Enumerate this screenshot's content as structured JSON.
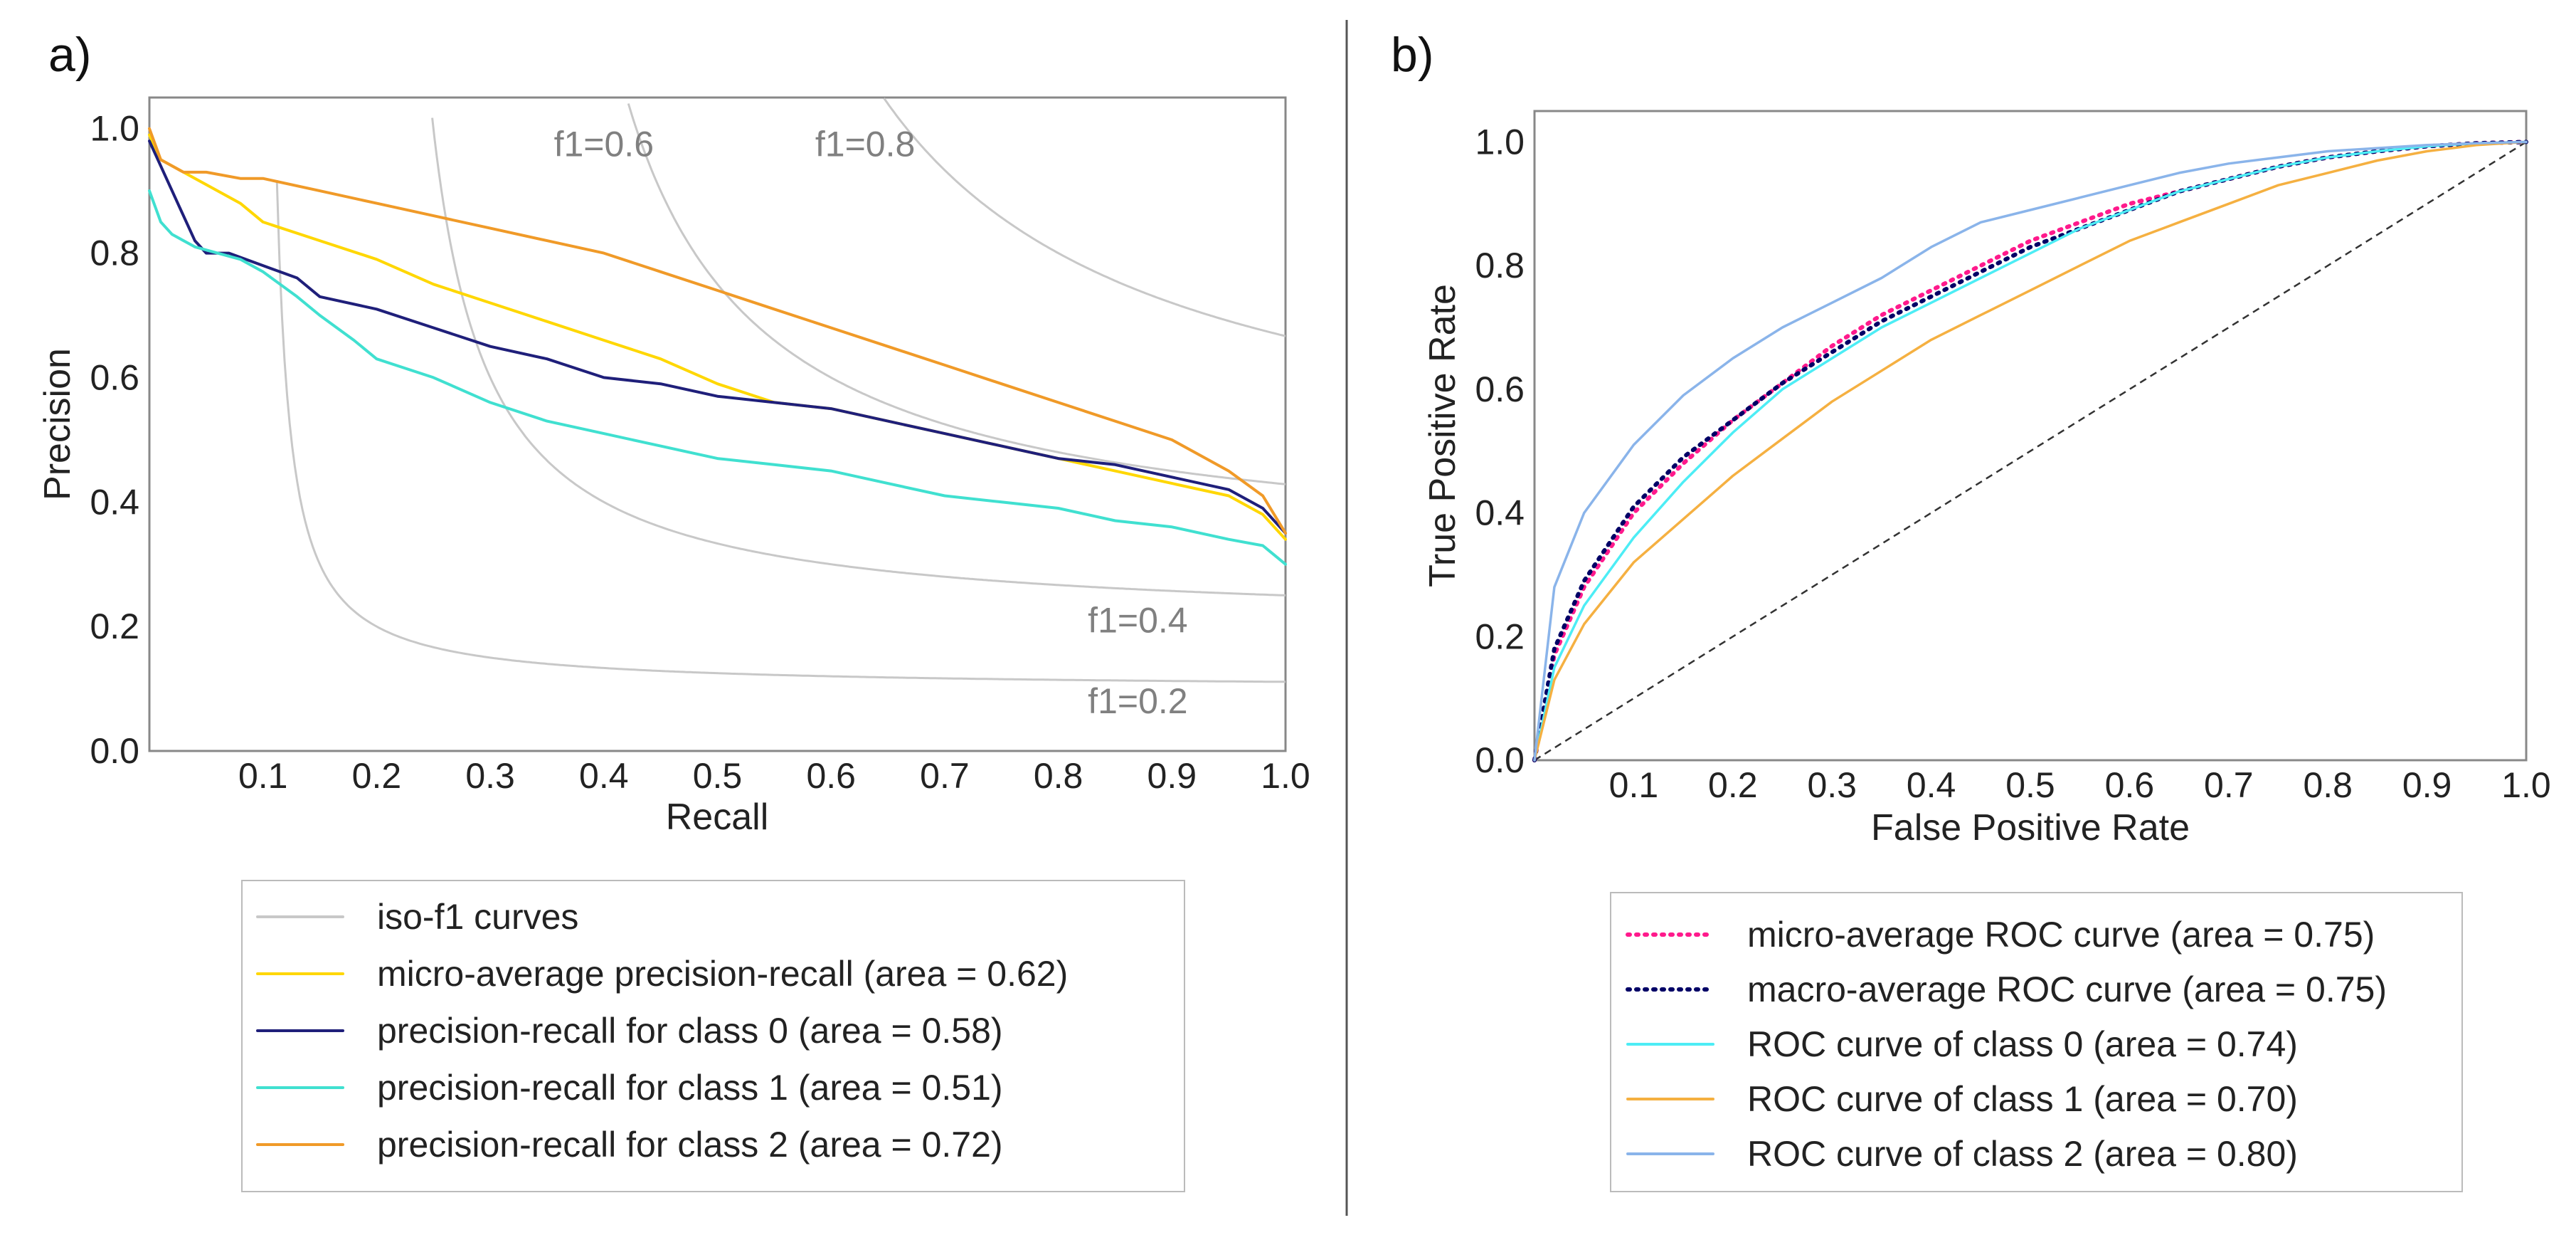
{
  "panels": {
    "a": {
      "label": "a)"
    },
    "b": {
      "label": "b)"
    }
  },
  "chart_data": [
    {
      "panel": "a",
      "type": "line",
      "title": "",
      "xlabel": "Recall",
      "ylabel": "Precision",
      "xlim": [
        0.0,
        1.0
      ],
      "ylim": [
        0.0,
        1.05
      ],
      "grid": false,
      "xticks": [
        {
          "value": 0.1,
          "label": "0.1"
        },
        {
          "value": 0.2,
          "label": "0.2"
        },
        {
          "value": 0.3,
          "label": "0.3"
        },
        {
          "value": 0.4,
          "label": "0.4"
        },
        {
          "value": 0.5,
          "label": "0.5"
        },
        {
          "value": 0.6,
          "label": "0.6"
        },
        {
          "value": 0.7,
          "label": "0.7"
        },
        {
          "value": 0.8,
          "label": "0.8"
        },
        {
          "value": 0.9,
          "label": "0.9"
        },
        {
          "value": 1.0,
          "label": "1.0"
        }
      ],
      "yticks": [
        {
          "value": 0.0,
          "label": "0.0"
        },
        {
          "value": 0.2,
          "label": "0.2"
        },
        {
          "value": 0.4,
          "label": "0.4"
        },
        {
          "value": 0.6,
          "label": "0.6"
        },
        {
          "value": 0.8,
          "label": "0.8"
        },
        {
          "value": 1.0,
          "label": "1.0"
        }
      ],
      "iso_f1": [
        {
          "f1": 0.2,
          "label": "f1=0.2",
          "label_at": [
            0.87,
            0.08
          ]
        },
        {
          "f1": 0.4,
          "label": "f1=0.4",
          "label_at": [
            0.87,
            0.21
          ]
        },
        {
          "f1": 0.6,
          "label": "f1=0.6",
          "label_at": [
            0.4,
            0.975
          ]
        },
        {
          "f1": 0.8,
          "label": "f1=0.8",
          "label_at": [
            0.63,
            0.975
          ]
        }
      ],
      "iso_color": "#c8c8c8",
      "series": [
        {
          "name": "micro-average precision-recall (area = 0.62)",
          "color": "#ffd700",
          "x": [
            0.0,
            0.01,
            0.03,
            0.05,
            0.08,
            0.1,
            0.15,
            0.2,
            0.25,
            0.3,
            0.35,
            0.4,
            0.45,
            0.5,
            0.55,
            0.6,
            0.65,
            0.7,
            0.75,
            0.8,
            0.85,
            0.9,
            0.95,
            0.98,
            1.0
          ],
          "y": [
            0.99,
            0.95,
            0.93,
            0.91,
            0.88,
            0.85,
            0.82,
            0.79,
            0.75,
            0.72,
            0.69,
            0.66,
            0.63,
            0.59,
            0.56,
            0.55,
            0.53,
            0.51,
            0.49,
            0.47,
            0.45,
            0.43,
            0.41,
            0.38,
            0.34
          ]
        },
        {
          "name": "precision-recall for class 0 (area = 0.58)",
          "color": "#1f1f7a",
          "x": [
            0.0,
            0.02,
            0.04,
            0.05,
            0.07,
            0.1,
            0.13,
            0.15,
            0.2,
            0.25,
            0.3,
            0.35,
            0.4,
            0.45,
            0.5,
            0.55,
            0.6,
            0.65,
            0.7,
            0.75,
            0.8,
            0.85,
            0.9,
            0.95,
            0.98,
            1.0
          ],
          "y": [
            0.98,
            0.9,
            0.82,
            0.8,
            0.8,
            0.78,
            0.76,
            0.73,
            0.71,
            0.68,
            0.65,
            0.63,
            0.6,
            0.59,
            0.57,
            0.56,
            0.55,
            0.53,
            0.51,
            0.49,
            0.47,
            0.46,
            0.44,
            0.42,
            0.39,
            0.35
          ]
        },
        {
          "name": "precision-recall for class 1 (area = 0.51)",
          "color": "#40e0d0",
          "x": [
            0.0,
            0.01,
            0.02,
            0.04,
            0.06,
            0.08,
            0.1,
            0.13,
            0.15,
            0.18,
            0.2,
            0.25,
            0.3,
            0.35,
            0.4,
            0.45,
            0.5,
            0.55,
            0.6,
            0.65,
            0.7,
            0.75,
            0.8,
            0.85,
            0.9,
            0.95,
            0.98,
            1.0
          ],
          "y": [
            0.9,
            0.85,
            0.83,
            0.81,
            0.8,
            0.79,
            0.77,
            0.73,
            0.7,
            0.66,
            0.63,
            0.6,
            0.56,
            0.53,
            0.51,
            0.49,
            0.47,
            0.46,
            0.45,
            0.43,
            0.41,
            0.4,
            0.39,
            0.37,
            0.36,
            0.34,
            0.33,
            0.3
          ]
        },
        {
          "name": "precision-recall for class 2 (area = 0.72)",
          "color": "#f09a28",
          "x": [
            0.0,
            0.01,
            0.03,
            0.05,
            0.08,
            0.1,
            0.15,
            0.2,
            0.25,
            0.3,
            0.35,
            0.4,
            0.45,
            0.5,
            0.55,
            0.6,
            0.65,
            0.7,
            0.75,
            0.8,
            0.85,
            0.9,
            0.95,
            0.98,
            1.0
          ],
          "y": [
            1.0,
            0.95,
            0.93,
            0.93,
            0.92,
            0.92,
            0.9,
            0.88,
            0.86,
            0.84,
            0.82,
            0.8,
            0.77,
            0.74,
            0.71,
            0.68,
            0.65,
            0.62,
            0.59,
            0.56,
            0.53,
            0.5,
            0.45,
            0.41,
            0.35
          ]
        }
      ],
      "legend": {
        "placement": "below",
        "entries": [
          {
            "name": "iso-f1 curves",
            "color": "#c8c8c8",
            "style": "solid"
          },
          {
            "name": "micro-average precision-recall (area = 0.62)",
            "color": "#ffd700",
            "style": "solid"
          },
          {
            "name": "precision-recall for class 0 (area = 0.58)",
            "color": "#1f1f7a",
            "style": "solid"
          },
          {
            "name": "precision-recall for class 1 (area = 0.51)",
            "color": "#40e0d0",
            "style": "solid"
          },
          {
            "name": "precision-recall for class 2 (area = 0.72)",
            "color": "#f09a28",
            "style": "solid"
          }
        ]
      }
    },
    {
      "panel": "b",
      "type": "line",
      "title": "",
      "xlabel": "False Positive Rate",
      "ylabel": "True Positive Rate",
      "xlim": [
        0.0,
        1.0
      ],
      "ylim": [
        0.0,
        1.05
      ],
      "grid": false,
      "xticks": [
        {
          "value": 0.1,
          "label": "0.1"
        },
        {
          "value": 0.2,
          "label": "0.2"
        },
        {
          "value": 0.3,
          "label": "0.3"
        },
        {
          "value": 0.4,
          "label": "0.4"
        },
        {
          "value": 0.5,
          "label": "0.5"
        },
        {
          "value": 0.6,
          "label": "0.6"
        },
        {
          "value": 0.7,
          "label": "0.7"
        },
        {
          "value": 0.8,
          "label": "0.8"
        },
        {
          "value": 0.9,
          "label": "0.9"
        },
        {
          "value": 1.0,
          "label": "1.0"
        }
      ],
      "yticks": [
        {
          "value": 0.0,
          "label": "0.0"
        },
        {
          "value": 0.2,
          "label": "0.2"
        },
        {
          "value": 0.4,
          "label": "0.4"
        },
        {
          "value": 0.6,
          "label": "0.6"
        },
        {
          "value": 0.8,
          "label": "0.8"
        },
        {
          "value": 1.0,
          "label": "1.0"
        }
      ],
      "series": [
        {
          "name": "micro-average ROC curve (area = 0.75)",
          "color": "#ff1a8c",
          "style": "dotted",
          "x": [
            0.0,
            0.02,
            0.05,
            0.1,
            0.15,
            0.2,
            0.25,
            0.3,
            0.35,
            0.4,
            0.45,
            0.5,
            0.55,
            0.6,
            0.65,
            0.7,
            0.75,
            0.8,
            0.85,
            0.9,
            0.95,
            1.0
          ],
          "y": [
            0.0,
            0.17,
            0.28,
            0.4,
            0.48,
            0.55,
            0.61,
            0.67,
            0.72,
            0.76,
            0.8,
            0.84,
            0.87,
            0.9,
            0.92,
            0.94,
            0.96,
            0.975,
            0.985,
            0.993,
            0.998,
            1.0
          ]
        },
        {
          "name": "macro-average ROC curve (area = 0.75)",
          "color": "#000066",
          "style": "dotted",
          "x": [
            0.0,
            0.02,
            0.05,
            0.1,
            0.15,
            0.2,
            0.25,
            0.3,
            0.35,
            0.4,
            0.45,
            0.5,
            0.55,
            0.6,
            0.65,
            0.7,
            0.75,
            0.8,
            0.85,
            0.9,
            0.95,
            1.0
          ],
          "y": [
            0.0,
            0.18,
            0.29,
            0.41,
            0.49,
            0.55,
            0.61,
            0.66,
            0.71,
            0.75,
            0.79,
            0.83,
            0.86,
            0.89,
            0.92,
            0.94,
            0.96,
            0.975,
            0.985,
            0.993,
            0.998,
            1.0
          ]
        },
        {
          "name": "ROC curve of class 0 (area = 0.74)",
          "color": "#4dedf5",
          "style": "solid",
          "x": [
            0.0,
            0.02,
            0.05,
            0.1,
            0.15,
            0.2,
            0.25,
            0.3,
            0.35,
            0.4,
            0.45,
            0.5,
            0.55,
            0.6,
            0.65,
            0.7,
            0.75,
            0.8,
            0.85,
            0.9,
            0.95,
            1.0
          ],
          "y": [
            0.0,
            0.15,
            0.25,
            0.36,
            0.45,
            0.53,
            0.6,
            0.65,
            0.7,
            0.74,
            0.78,
            0.82,
            0.86,
            0.89,
            0.92,
            0.94,
            0.96,
            0.975,
            0.985,
            0.993,
            0.998,
            1.0
          ]
        },
        {
          "name": "ROC curve of class 1 (area = 0.70)",
          "color": "#f5b041",
          "style": "solid",
          "x": [
            0.0,
            0.02,
            0.05,
            0.1,
            0.15,
            0.2,
            0.25,
            0.3,
            0.35,
            0.4,
            0.45,
            0.5,
            0.55,
            0.6,
            0.65,
            0.7,
            0.75,
            0.8,
            0.85,
            0.9,
            0.95,
            1.0
          ],
          "y": [
            0.0,
            0.13,
            0.22,
            0.32,
            0.39,
            0.46,
            0.52,
            0.58,
            0.63,
            0.68,
            0.72,
            0.76,
            0.8,
            0.84,
            0.87,
            0.9,
            0.93,
            0.95,
            0.97,
            0.985,
            0.995,
            1.0
          ]
        },
        {
          "name": "ROC curve of class 2 (area = 0.80)",
          "color": "#8ab4ea",
          "style": "solid",
          "x": [
            0.0,
            0.02,
            0.05,
            0.1,
            0.15,
            0.2,
            0.25,
            0.3,
            0.35,
            0.4,
            0.45,
            0.5,
            0.55,
            0.6,
            0.65,
            0.7,
            0.75,
            0.8,
            0.85,
            0.9,
            0.95,
            1.0
          ],
          "y": [
            0.0,
            0.28,
            0.4,
            0.51,
            0.59,
            0.65,
            0.7,
            0.74,
            0.78,
            0.83,
            0.87,
            0.89,
            0.91,
            0.93,
            0.95,
            0.965,
            0.975,
            0.985,
            0.99,
            0.995,
            0.998,
            1.0
          ]
        }
      ],
      "reference_line": {
        "x": [
          0.0,
          1.0
        ],
        "y": [
          0.0,
          1.0
        ],
        "color": "#333333",
        "style": "dashed"
      },
      "legend": {
        "placement": "below",
        "entries": [
          {
            "name": "micro-average ROC curve (area = 0.75)",
            "color": "#ff1a8c",
            "style": "dotted"
          },
          {
            "name": "macro-average ROC curve (area = 0.75)",
            "color": "#000066",
            "style": "dotted"
          },
          {
            "name": "ROC curve of class 0 (area = 0.74)",
            "color": "#4dedf5",
            "style": "solid"
          },
          {
            "name": "ROC curve of class 1 (area = 0.70)",
            "color": "#f5b041",
            "style": "solid"
          },
          {
            "name": "ROC curve of class 2 (area = 0.80)",
            "color": "#8ab4ea",
            "style": "solid"
          }
        ]
      }
    }
  ]
}
